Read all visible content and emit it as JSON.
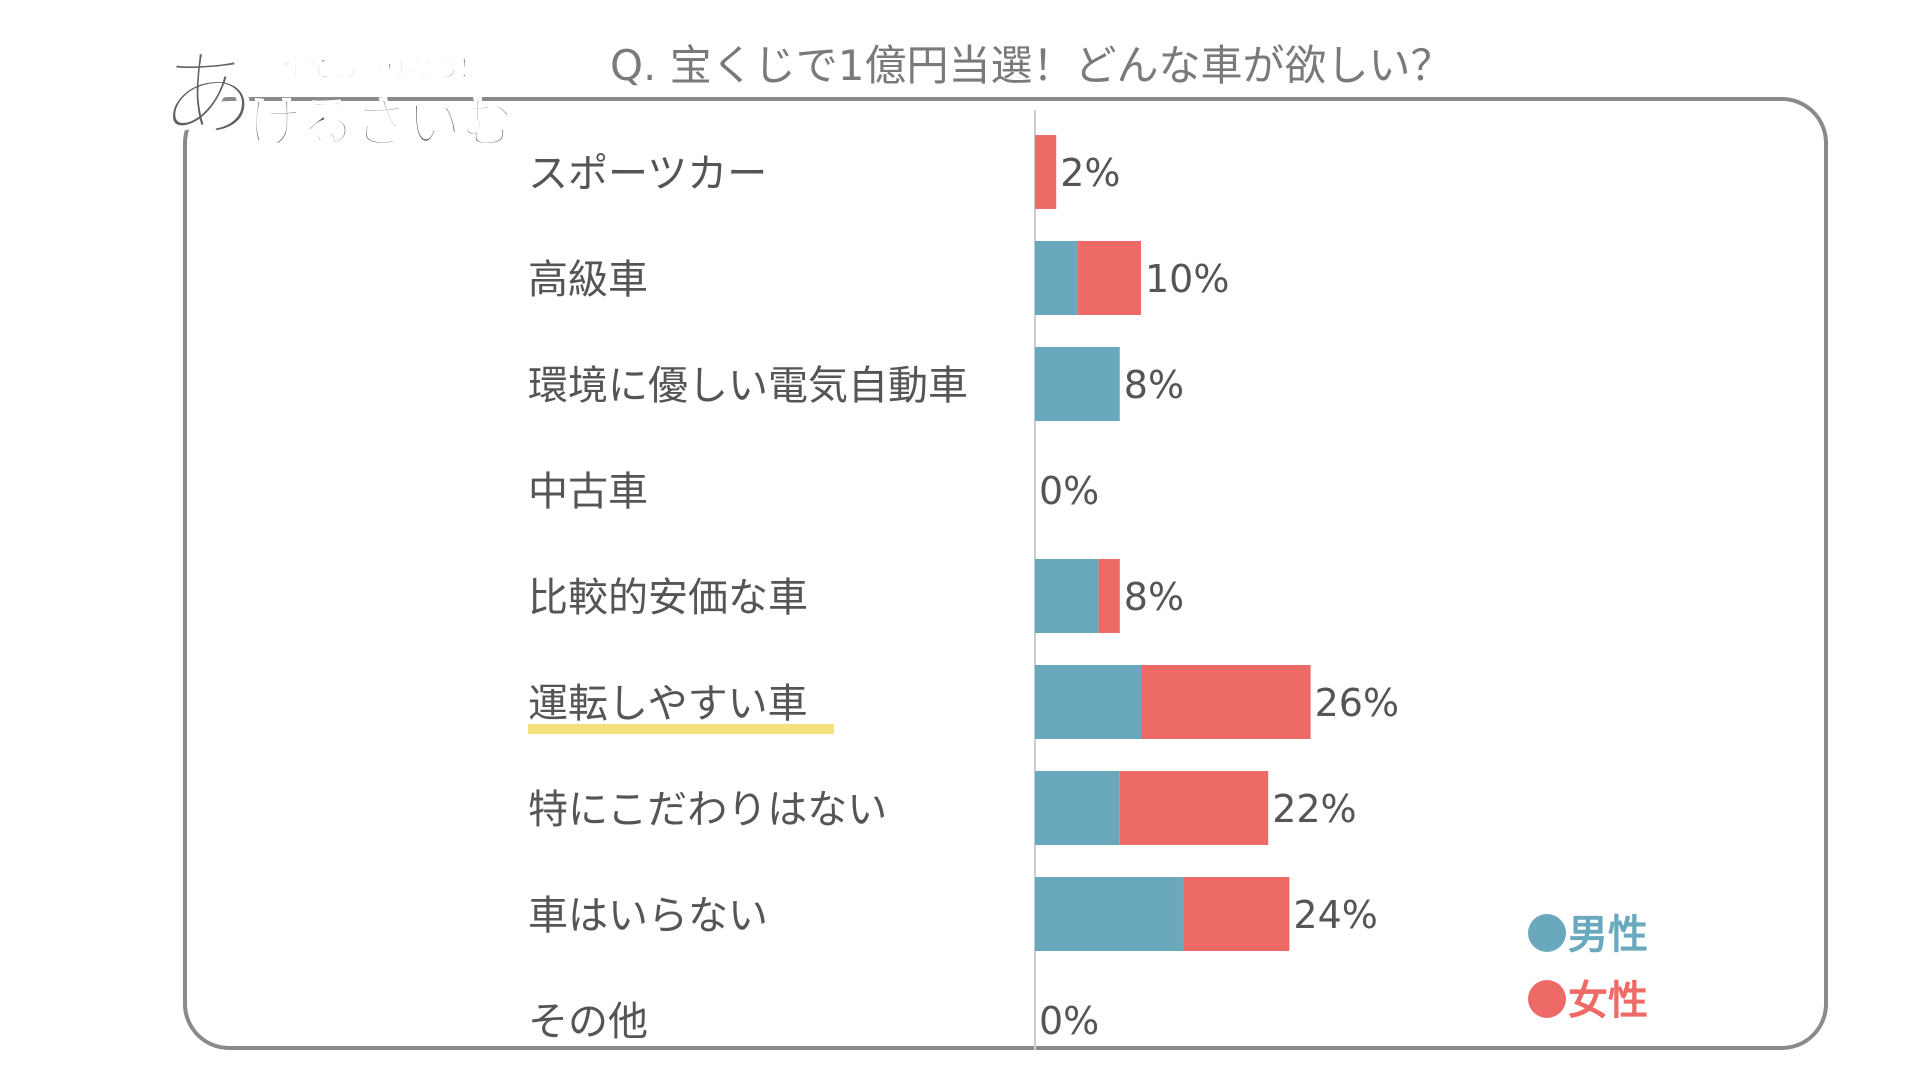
{
  "header": {
    "title": "Q. 宝くじで1億円当選！どんな車が欲しい？"
  },
  "logo": {
    "small_text": "借金でお困りなら！",
    "big_first": "あ",
    "big_rest": "けるさいむ"
  },
  "legend": {
    "male_label": "男性",
    "female_label": "女性"
  },
  "colors": {
    "male": "#6aa9bd",
    "female": "#ee6a66",
    "highlight": "#f5e07a",
    "axis": "#cccccc"
  },
  "chart_data": {
    "type": "bar",
    "orientation": "horizontal",
    "stacked": true,
    "title": "Q. 宝くじで1億円当選！どんな車が欲しい？",
    "categories": [
      "スポーツカー",
      "高級車",
      "環境に優しい電気自動車",
      "中古車",
      "比較的安価な車",
      "運転しやすい車",
      "特にこだわりはない",
      "車はいらない",
      "その他"
    ],
    "highlighted_category": "運転しやすい車",
    "series": [
      {
        "name": "男性",
        "values": [
          0,
          4,
          8,
          0,
          6,
          10,
          8,
          14,
          0
        ]
      },
      {
        "name": "女性",
        "values": [
          2,
          6,
          0,
          0,
          2,
          16,
          14,
          10,
          0
        ]
      }
    ],
    "totals_labels": [
      "2%",
      "10%",
      "8%",
      "0%",
      "8%",
      "26%",
      "22%",
      "24%",
      "0%"
    ],
    "xlim": [
      0,
      30
    ],
    "legend_position": "bottom-right"
  }
}
